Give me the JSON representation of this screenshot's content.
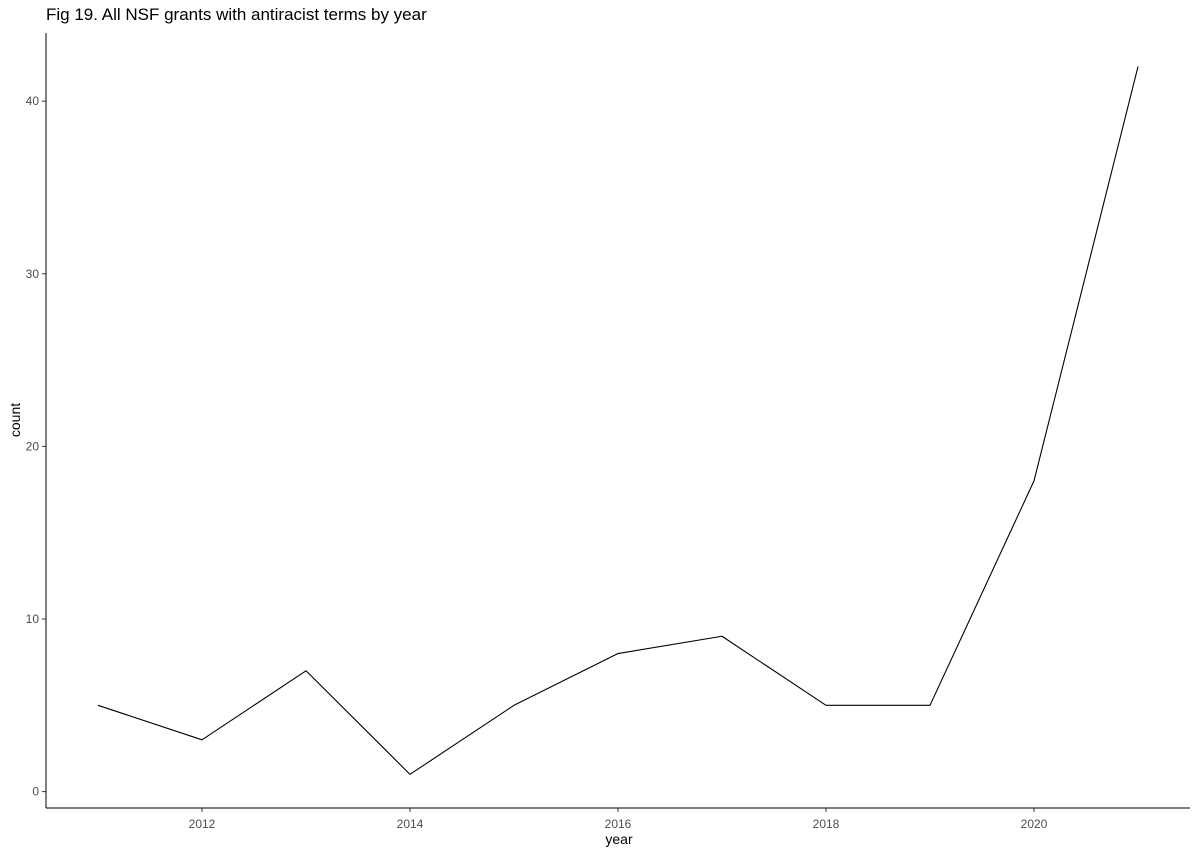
{
  "chart_data": {
    "type": "line",
    "title": "Fig 19. All NSF grants with antiracist terms by year",
    "xlabel": "year",
    "ylabel": "count",
    "x": [
      2011,
      2012,
      2013,
      2014,
      2015,
      2016,
      2017,
      2018,
      2019,
      2020,
      2021
    ],
    "series": [
      {
        "values": [
          5,
          3,
          7,
          1,
          5,
          8,
          9,
          5,
          5,
          18,
          42
        ]
      }
    ],
    "xlim": [
      2010.5,
      2021.5
    ],
    "ylim": [
      -0.95,
      43.95
    ],
    "x_ticks": [
      2012,
      2014,
      2016,
      2018,
      2020
    ],
    "y_ticks": [
      0,
      10,
      20,
      30,
      40
    ],
    "grid": false,
    "line_color": "#000000"
  }
}
